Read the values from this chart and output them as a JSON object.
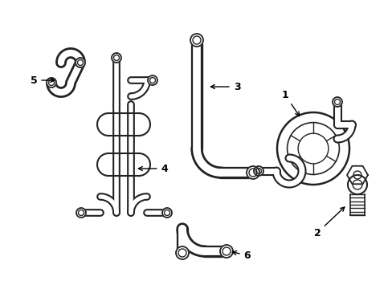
{
  "background_color": "#ffffff",
  "line_color": "#222222",
  "figsize": [
    4.89,
    3.6
  ],
  "dpi": 100
}
